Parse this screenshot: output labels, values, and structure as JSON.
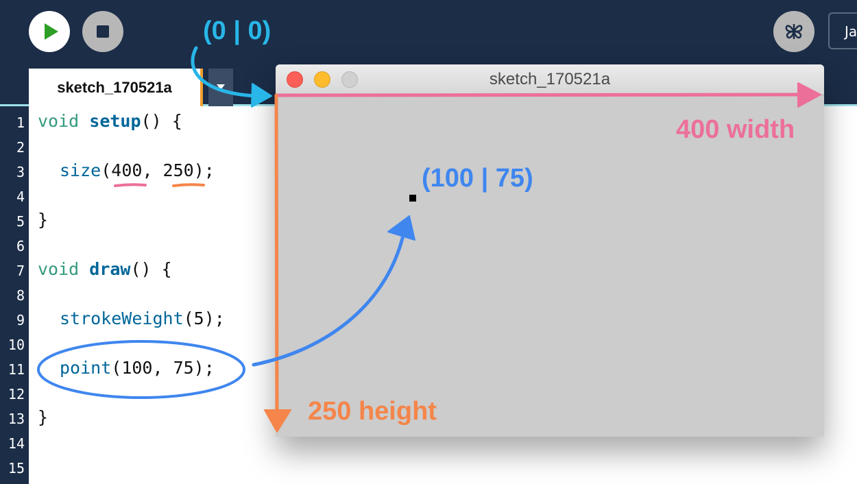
{
  "toolbar": {
    "run_icon": "play-icon",
    "stop_icon": "stop-icon",
    "mode_icon": "butterfly-icon",
    "mode_label": "Ja"
  },
  "editor": {
    "tab_label": "sketch_170521a",
    "line_numbers": [
      "1",
      "2",
      "3",
      "4",
      "5",
      "6",
      "7",
      "8",
      "9",
      "10",
      "11",
      "12",
      "13",
      "14",
      "15"
    ],
    "code": {
      "l1_kw": "void",
      "l1_fn": "setup",
      "l1_rest": "() {",
      "l3_fn": "size",
      "l3_open": "(",
      "l3_a": "400",
      "l3_sep": ", ",
      "l3_b": "250",
      "l3_close": ");",
      "l5": "}",
      "l7_kw": "void",
      "l7_fn": "draw",
      "l7_rest": "() {",
      "l9_fn": "strokeWeight",
      "l9_rest": "(5);",
      "l11_fn": "point",
      "l11_rest": "(100, 75);",
      "l13": "}"
    }
  },
  "sketch_window": {
    "title": "sketch_170521a"
  },
  "annotations": {
    "origin": "(0 | 0)",
    "width": "400 width",
    "height": "250 height",
    "point": "(100 | 75)",
    "colors": {
      "origin": "#29b6e8",
      "width": "#ec6f9a",
      "height": "#f5854a",
      "point": "#3f86ef"
    }
  }
}
